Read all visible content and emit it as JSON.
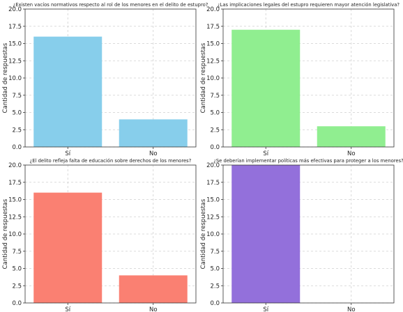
{
  "chart_data": [
    {
      "type": "bar",
      "title": "¿Existen vacíos normativos respecto al rol de los menores en el delito de estupro?",
      "categories": [
        "Sí",
        "No"
      ],
      "values": [
        16,
        4
      ],
      "ylabel": "Cantidad de respuestas",
      "xlabel": "",
      "ylim": [
        0,
        20
      ],
      "yticks": [
        "0.0",
        "2.5",
        "5.0",
        "7.5",
        "10.0",
        "12.5",
        "15.0",
        "17.5",
        "20.0"
      ],
      "color": "#87ceeb",
      "grid": true
    },
    {
      "type": "bar",
      "title": "¿Las implicaciones legales del estupro requieren mayor atención legislativa?",
      "categories": [
        "Sí",
        "No"
      ],
      "values": [
        17,
        3
      ],
      "ylabel": "Cantidad de respuestas",
      "xlabel": "",
      "ylim": [
        0,
        20
      ],
      "yticks": [
        "0.0",
        "2.5",
        "5.0",
        "7.5",
        "10.0",
        "12.5",
        "15.0",
        "17.5",
        "20.0"
      ],
      "color": "#90ee90",
      "grid": true
    },
    {
      "type": "bar",
      "title": "¿El delito refleja falta de educación sobre derechos de los menores?",
      "categories": [
        "Sí",
        "No"
      ],
      "values": [
        16,
        4
      ],
      "ylabel": "Cantidad de respuestas",
      "xlabel": "",
      "ylim": [
        0,
        20
      ],
      "yticks": [
        "0.0",
        "2.5",
        "5.0",
        "7.5",
        "10.0",
        "12.5",
        "15.0",
        "17.5",
        "20.0"
      ],
      "color": "#fa8072",
      "grid": true
    },
    {
      "type": "bar",
      "title": "¿Se deberían implementar políticas más efectivas para proteger a los menores?",
      "categories": [
        "Sí",
        "No"
      ],
      "values": [
        20,
        0
      ],
      "ylabel": "Cantidad de respuestas",
      "xlabel": "",
      "ylim": [
        0,
        20
      ],
      "yticks": [
        "0.0",
        "2.5",
        "5.0",
        "7.5",
        "10.0",
        "12.5",
        "15.0",
        "17.5",
        "20.0"
      ],
      "color": "#9370db",
      "grid": true
    }
  ]
}
